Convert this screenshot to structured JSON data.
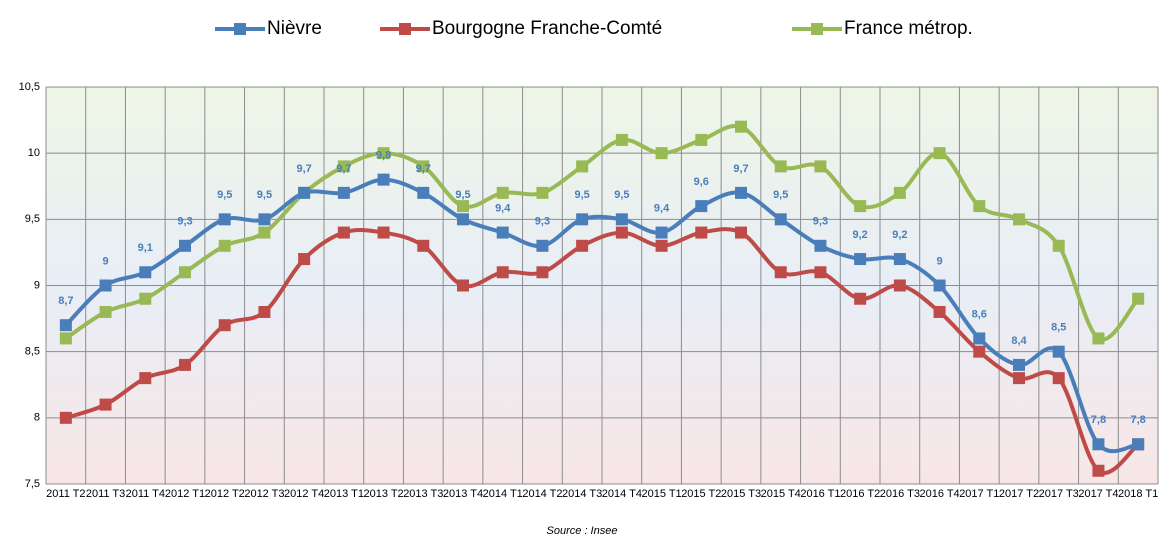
{
  "chart_data": {
    "type": "line",
    "categories": [
      "2011 T2",
      "2011 T3",
      "2011 T4",
      "2012 T1",
      "2012 T2",
      "2012 T3",
      "2012 T4",
      "2013 T1",
      "2013 T2",
      "2013 T3",
      "2013 T4",
      "2014 T1",
      "2014 T2",
      "2014 T3",
      "2014 T4",
      "2015 T1",
      "2015 T2",
      "2015 T3",
      "2015 T4",
      "2016 T1",
      "2016 T2",
      "2016 T3",
      "2016 T4",
      "2017 T1",
      "2017 T2",
      "2017 T3",
      "2017 T4",
      "2018 T1"
    ],
    "series": [
      {
        "name": "Nièvre",
        "color": "#4a7ebb",
        "values": [
          8.7,
          9,
          9.1,
          9.3,
          9.5,
          9.5,
          9.7,
          9.7,
          9.8,
          9.7,
          9.5,
          9.4,
          9.3,
          9.5,
          9.5,
          9.4,
          9.6,
          9.7,
          9.5,
          9.3,
          9.2,
          9.2,
          9,
          8.6,
          8.4,
          8.5,
          7.8,
          7.8
        ],
        "value_labels": [
          "8,7",
          "9",
          "9,1",
          "9,3",
          "9,5",
          "9,5",
          "9,7",
          "9,7",
          "9,8",
          "9,7",
          "9,5",
          "9,4",
          "9,3",
          "9,5",
          "9,5",
          "9,4",
          "9,6",
          "9,7",
          "9,5",
          "9,3",
          "9,2",
          "9,2",
          "9",
          "8,6",
          "8,4",
          "8,5",
          "7,8",
          "7,8"
        ]
      },
      {
        "name": "Bourgogne Franche-Comté",
        "color": "#be4b48",
        "values": [
          8.0,
          8.1,
          8.3,
          8.4,
          8.7,
          8.8,
          9.2,
          9.4,
          9.4,
          9.3,
          9.0,
          9.1,
          9.1,
          9.3,
          9.4,
          9.3,
          9.4,
          9.4,
          9.1,
          9.1,
          8.9,
          9.0,
          8.8,
          8.5,
          8.3,
          8.3,
          7.6,
          7.8
        ]
      },
      {
        "name": "France métrop.",
        "color": "#98b954",
        "values": [
          8.6,
          8.8,
          8.9,
          9.1,
          9.3,
          9.4,
          9.7,
          9.9,
          10.0,
          9.9,
          9.6,
          9.7,
          9.7,
          9.9,
          10.1,
          10.0,
          10.1,
          10.2,
          9.9,
          9.9,
          9.6,
          9.7,
          10.0,
          9.6,
          9.5,
          9.3,
          8.6,
          8.9
        ]
      }
    ],
    "ylim": [
      7.5,
      10.5
    ],
    "yticks": [
      {
        "value": 7.5,
        "label": "7,5"
      },
      8,
      {
        "value": 8.5,
        "label": "8,5"
      },
      9,
      {
        "value": 9.5,
        "label": "9,5"
      },
      10,
      {
        "value": 10.5,
        "label": "10,5"
      }
    ],
    "grid": true,
    "legend": "top",
    "source": "Source : Insee"
  }
}
